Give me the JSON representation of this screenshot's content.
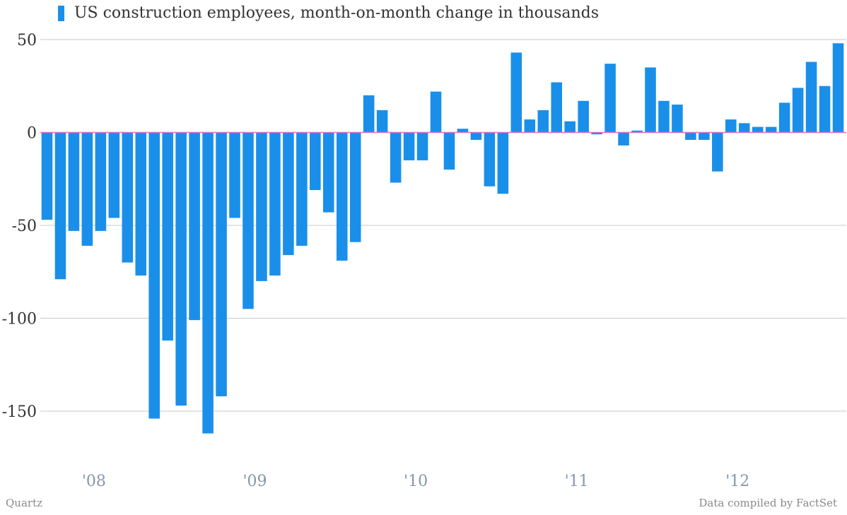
{
  "chart_data": {
    "type": "bar",
    "title": "",
    "xlabel": "",
    "ylabel": "",
    "series": [
      {
        "name": "US construction employees, month-on-month change in thousands",
        "color": "#1a8fea",
        "values": [
          -47,
          -79,
          -53,
          -61,
          -53,
          -46,
          -70,
          -77,
          -154,
          -112,
          -147,
          -101,
          -162,
          -142,
          -46,
          -95,
          -80,
          -77,
          -66,
          -61,
          -31,
          -43,
          -69,
          -59,
          20,
          12,
          -27,
          -15,
          -15,
          22,
          -20,
          2,
          -4,
          -29,
          -33,
          43,
          7,
          12,
          27,
          6,
          17,
          -1,
          37,
          -7,
          1,
          35,
          17,
          15,
          -4,
          -4,
          -21,
          7,
          5,
          3,
          3,
          16,
          24,
          38,
          25,
          48
        ]
      }
    ],
    "x_tick_labels": [
      {
        "label": "'08",
        "index": 3.5
      },
      {
        "label": "'09",
        "index": 15.5
      },
      {
        "label": "'10",
        "index": 27.5
      },
      {
        "label": "'11",
        "index": 39.5
      },
      {
        "label": "'12",
        "index": 51.5
      }
    ],
    "y_ticks": [
      50,
      0,
      -50,
      -100,
      -150
    ],
    "ylim": [
      -175,
      50
    ],
    "grid": true,
    "zero_line_color": "#e06fc4",
    "grid_color": "#c8c8c8",
    "legend": "top-left"
  },
  "footer": {
    "left_credit": "Quartz",
    "right_credit": "Data compiled by FactSet"
  }
}
